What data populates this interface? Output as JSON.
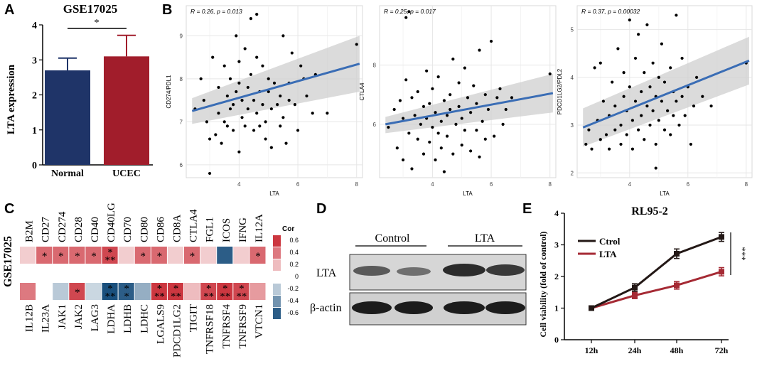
{
  "panels": {
    "A": "A",
    "B": "B",
    "C": "C",
    "D": "D",
    "E": "E"
  },
  "colors": {
    "normal": "#1f3468",
    "ucec": "#a11d2b",
    "fit": "#3a6db5",
    "band": "#cfcfcf",
    "ctrol": "#231816",
    "lta": "#a52a34"
  },
  "chart_data": [
    {
      "id": "A",
      "type": "bar",
      "title": "GSE17025",
      "categories": [
        "Normal",
        "UCEC"
      ],
      "values": [
        2.7,
        3.1
      ],
      "errors": [
        0.35,
        0.6
      ],
      "ylabel": "LTA expression",
      "ylim": [
        0,
        4
      ],
      "yticks": [
        "0",
        "1",
        "2",
        "3",
        "4"
      ],
      "significance": "*"
    },
    {
      "id": "B1",
      "type": "scatter",
      "xlabel": "LTA",
      "ylabel": "CD274/PDL1",
      "annotation": "R = 0.26, p = 0.013",
      "xlim": [
        2.2,
        8.2
      ],
      "ylim": [
        5.7,
        9.7
      ],
      "xticks": [
        "4",
        "6",
        "8"
      ],
      "yticks": [
        "6",
        "7",
        "8",
        "9"
      ],
      "fit": [
        [
          2.4,
          7.25
        ],
        [
          8.1,
          8.35
        ]
      ],
      "band_lo": [
        6.95,
        7.7
      ],
      "band_hi": [
        7.55,
        9.0
      ],
      "points": [
        [
          2.5,
          7.3
        ],
        [
          2.7,
          8.0
        ],
        [
          2.8,
          7.5
        ],
        [
          2.9,
          7.0
        ],
        [
          3.0,
          6.6
        ],
        [
          3.1,
          8.5
        ],
        [
          3.2,
          6.7
        ],
        [
          3.3,
          7.2
        ],
        [
          3.3,
          7.8
        ],
        [
          3.4,
          6.5
        ],
        [
          3.5,
          7.0
        ],
        [
          3.5,
          8.3
        ],
        [
          3.6,
          6.9
        ],
        [
          3.6,
          7.6
        ],
        [
          3.7,
          7.3
        ],
        [
          3.7,
          8.0
        ],
        [
          3.8,
          6.8
        ],
        [
          3.8,
          7.4
        ],
        [
          3.9,
          9.0
        ],
        [
          3.9,
          7.7
        ],
        [
          4.0,
          6.3
        ],
        [
          4.0,
          7.9
        ],
        [
          4.0,
          8.4
        ],
        [
          4.1,
          7.1
        ],
        [
          4.1,
          7.5
        ],
        [
          4.2,
          8.7
        ],
        [
          4.2,
          6.9
        ],
        [
          4.3,
          7.8
        ],
        [
          4.3,
          7.3
        ],
        [
          4.4,
          9.4
        ],
        [
          4.4,
          8.1
        ],
        [
          4.5,
          7.5
        ],
        [
          4.5,
          6.8
        ],
        [
          4.6,
          8.5
        ],
        [
          4.6,
          7.2
        ],
        [
          4.7,
          7.7
        ],
        [
          4.7,
          6.9
        ],
        [
          4.8,
          8.3
        ],
        [
          4.8,
          7.4
        ],
        [
          4.9,
          7.0
        ],
        [
          4.9,
          6.6
        ],
        [
          5.0,
          7.7
        ],
        [
          5.0,
          8.0
        ],
        [
          5.1,
          6.4
        ],
        [
          5.1,
          7.3
        ],
        [
          5.2,
          7.9
        ],
        [
          5.3,
          7.4
        ],
        [
          5.4,
          6.9
        ],
        [
          5.4,
          7.6
        ],
        [
          5.5,
          9.0
        ],
        [
          5.5,
          7.1
        ],
        [
          5.6,
          6.5
        ],
        [
          5.7,
          7.9
        ],
        [
          5.7,
          7.5
        ],
        [
          5.8,
          8.6
        ],
        [
          5.9,
          7.4
        ],
        [
          6.0,
          6.8
        ],
        [
          6.1,
          8.3
        ],
        [
          6.2,
          8.0
        ],
        [
          6.3,
          7.6
        ],
        [
          6.5,
          7.2
        ],
        [
          6.6,
          8.1
        ],
        [
          7.0,
          7.2
        ],
        [
          8.0,
          8.8
        ],
        [
          3.0,
          5.8
        ],
        [
          4.6,
          9.5
        ]
      ]
    },
    {
      "id": "B2",
      "type": "scatter",
      "xlabel": "LTA",
      "ylabel": "CTLA4",
      "annotation": "R = 0.25, p = 0.017",
      "xlim": [
        2.2,
        8.2
      ],
      "ylim": [
        4.2,
        10.0
      ],
      "xticks": [
        "4",
        "6",
        "8"
      ],
      "yticks": [
        "6",
        "8"
      ],
      "fit": [
        [
          2.4,
          6.0
        ],
        [
          8.1,
          7.05
        ]
      ],
      "band_lo": [
        5.7,
        6.4
      ],
      "band_hi": [
        6.25,
        7.7
      ],
      "points": [
        [
          2.5,
          5.9
        ],
        [
          2.7,
          6.5
        ],
        [
          2.8,
          5.2
        ],
        [
          2.9,
          6.8
        ],
        [
          3.0,
          4.8
        ],
        [
          3.0,
          6.2
        ],
        [
          3.1,
          7.5
        ],
        [
          3.2,
          5.7
        ],
        [
          3.3,
          6.9
        ],
        [
          3.3,
          4.5
        ],
        [
          3.4,
          6.3
        ],
        [
          3.5,
          5.5
        ],
        [
          3.5,
          7.1
        ],
        [
          3.6,
          6.0
        ],
        [
          3.7,
          6.6
        ],
        [
          3.7,
          5.0
        ],
        [
          3.8,
          7.8
        ],
        [
          3.8,
          6.2
        ],
        [
          3.9,
          5.4
        ],
        [
          3.9,
          6.7
        ],
        [
          4.0,
          5.9
        ],
        [
          4.0,
          7.2
        ],
        [
          4.1,
          4.8
        ],
        [
          4.1,
          6.4
        ],
        [
          4.2,
          5.7
        ],
        [
          4.2,
          7.6
        ],
        [
          4.3,
          6.1
        ],
        [
          4.3,
          5.2
        ],
        [
          4.4,
          6.8
        ],
        [
          4.4,
          4.4
        ],
        [
          4.5,
          6.3
        ],
        [
          4.5,
          5.6
        ],
        [
          4.6,
          7.0
        ],
        [
          4.6,
          6.5
        ],
        [
          4.7,
          5.0
        ],
        [
          4.7,
          8.2
        ],
        [
          4.8,
          6.0
        ],
        [
          4.9,
          6.6
        ],
        [
          4.9,
          7.4
        ],
        [
          5.0,
          5.3
        ],
        [
          5.0,
          6.2
        ],
        [
          5.1,
          7.9
        ],
        [
          5.1,
          5.8
        ],
        [
          5.2,
          6.9
        ],
        [
          5.3,
          5.1
        ],
        [
          5.3,
          6.4
        ],
        [
          5.4,
          7.3
        ],
        [
          5.5,
          5.8
        ],
        [
          5.5,
          6.7
        ],
        [
          5.6,
          8.5
        ],
        [
          5.6,
          4.9
        ],
        [
          5.7,
          6.1
        ],
        [
          5.8,
          7.0
        ],
        [
          5.8,
          5.5
        ],
        [
          5.9,
          6.5
        ],
        [
          6.0,
          8.8
        ],
        [
          6.1,
          5.6
        ],
        [
          6.2,
          6.9
        ],
        [
          6.3,
          7.2
        ],
        [
          6.4,
          6.0
        ],
        [
          6.5,
          6.5
        ],
        [
          6.7,
          6.9
        ],
        [
          8.0,
          7.7
        ],
        [
          3.1,
          9.6
        ],
        [
          3.2,
          9.8
        ]
      ]
    },
    {
      "id": "B3",
      "type": "scatter",
      "xlabel": "LTA",
      "ylabel": "PDCD1LG2/PDL2",
      "annotation": "R = 0.37, p = 0.00032",
      "xlim": [
        2.2,
        8.2
      ],
      "ylim": [
        1.9,
        5.5
      ],
      "xticks": [
        "4",
        "6",
        "8"
      ],
      "yticks": [
        "2",
        "3",
        "4",
        "5"
      ],
      "fit": [
        [
          2.4,
          2.95
        ],
        [
          8.1,
          4.35
        ]
      ],
      "band_lo": [
        2.55,
        3.85
      ],
      "band_hi": [
        3.35,
        4.85
      ],
      "points": [
        [
          2.5,
          2.6
        ],
        [
          2.6,
          2.9
        ],
        [
          2.7,
          2.5
        ],
        [
          2.8,
          4.2
        ],
        [
          2.9,
          3.1
        ],
        [
          3.0,
          2.7
        ],
        [
          3.0,
          4.3
        ],
        [
          3.1,
          3.5
        ],
        [
          3.2,
          2.8
        ],
        [
          3.3,
          3.2
        ],
        [
          3.3,
          2.5
        ],
        [
          3.4,
          3.9
        ],
        [
          3.5,
          2.9
        ],
        [
          3.5,
          3.4
        ],
        [
          3.6,
          4.6
        ],
        [
          3.7,
          3.0
        ],
        [
          3.7,
          2.6
        ],
        [
          3.8,
          3.6
        ],
        [
          3.8,
          4.1
        ],
        [
          3.9,
          3.3
        ],
        [
          3.9,
          2.8
        ],
        [
          4.0,
          5.2
        ],
        [
          4.0,
          3.8
        ],
        [
          4.1,
          3.1
        ],
        [
          4.1,
          2.5
        ],
        [
          4.2,
          4.4
        ],
        [
          4.2,
          3.5
        ],
        [
          4.3,
          2.9
        ],
        [
          4.3,
          4.9
        ],
        [
          4.4,
          3.2
        ],
        [
          4.4,
          3.7
        ],
        [
          4.5,
          4.1
        ],
        [
          4.5,
          2.7
        ],
        [
          4.6,
          3.4
        ],
        [
          4.6,
          5.1
        ],
        [
          4.7,
          3.0
        ],
        [
          4.7,
          3.8
        ],
        [
          4.8,
          4.3
        ],
        [
          4.8,
          3.3
        ],
        [
          4.9,
          2.6
        ],
        [
          4.9,
          3.6
        ],
        [
          5.0,
          4.0
        ],
        [
          5.0,
          3.1
        ],
        [
          5.1,
          4.7
        ],
        [
          5.1,
          3.5
        ],
        [
          5.2,
          2.9
        ],
        [
          5.2,
          3.9
        ],
        [
          5.3,
          3.3
        ],
        [
          5.4,
          4.2
        ],
        [
          5.4,
          2.8
        ],
        [
          5.5,
          3.7
        ],
        [
          5.5,
          3.2
        ],
        [
          5.6,
          5.3
        ],
        [
          5.6,
          3.5
        ],
        [
          5.7,
          3.0
        ],
        [
          5.8,
          3.6
        ],
        [
          5.8,
          4.4
        ],
        [
          5.9,
          3.2
        ],
        [
          6.0,
          3.8
        ],
        [
          6.1,
          2.6
        ],
        [
          6.2,
          3.4
        ],
        [
          6.3,
          4.0
        ],
        [
          6.5,
          3.6
        ],
        [
          6.8,
          3.4
        ],
        [
          8.0,
          4.3
        ],
        [
          4.9,
          2.1
        ]
      ]
    },
    {
      "id": "C",
      "type": "heatmap",
      "ylabel": "GSE17025",
      "legend_title": "Cor",
      "legend_ticks": [
        "0.6",
        "0.4",
        "0.2",
        "0",
        "-0.2",
        "-0.4",
        "-0.6"
      ],
      "top_labels": [
        "B2M",
        "CD27",
        "CD274",
        "CD28",
        "CD40",
        "CD40LG",
        "CD70",
        "CD80",
        "CD86",
        "CD8A",
        "CTLA4",
        "FGL1",
        "ICOS",
        "IFNG",
        "IL12A"
      ],
      "top_values": [
        0.15,
        0.45,
        0.45,
        0.45,
        0.45,
        0.55,
        0.15,
        0.45,
        0.45,
        0.15,
        0.45,
        0.15,
        -0.6,
        0.15,
        0.45
      ],
      "top_stars": [
        "",
        "*",
        "*",
        "*",
        "*",
        "***",
        "",
        "*",
        "*",
        "",
        "*",
        "",
        "",
        "",
        "*"
      ],
      "bottom_labels": [
        "IL12B",
        "IL23A",
        "JAK1",
        "JAK2",
        "LAG3",
        "LDHA",
        "LDHB",
        "LDHC",
        "LGALS9",
        "PDCD1LG2",
        "TIGIT",
        "TNFRSF18",
        "TNFRSF4",
        "TNFRSF9",
        "VTCN1"
      ],
      "bottom_values": [
        0.4,
        0.0,
        -0.2,
        0.55,
        -0.15,
        -0.65,
        -0.6,
        -0.3,
        0.6,
        0.6,
        0.2,
        0.55,
        0.6,
        0.55,
        0.3
      ],
      "bottom_stars": [
        "",
        "",
        "",
        "*",
        "",
        "***",
        "**",
        "",
        "***",
        "***",
        "",
        "***",
        "***",
        "***",
        ""
      ]
    },
    {
      "id": "D",
      "type": "blot",
      "group_labels": [
        "Control",
        "LTA"
      ],
      "row_labels": [
        "LTA",
        "β-actin"
      ]
    },
    {
      "id": "E",
      "type": "line",
      "title": "RL95-2",
      "categories": [
        "12h",
        "24h",
        "48h",
        "72h"
      ],
      "series": [
        {
          "name": "Ctrol",
          "values": [
            1.0,
            1.65,
            2.72,
            3.25
          ],
          "errors": [
            0.06,
            0.12,
            0.15,
            0.14
          ]
        },
        {
          "name": "LTA",
          "values": [
            1.0,
            1.4,
            1.72,
            2.15
          ],
          "errors": [
            0.06,
            0.1,
            0.12,
            0.13
          ]
        }
      ],
      "ylabel": "Cell viability (fold of control)",
      "ylim": [
        0,
        4
      ],
      "yticks": [
        "0",
        "1",
        "2",
        "3",
        "4"
      ],
      "significance": "***"
    }
  ]
}
